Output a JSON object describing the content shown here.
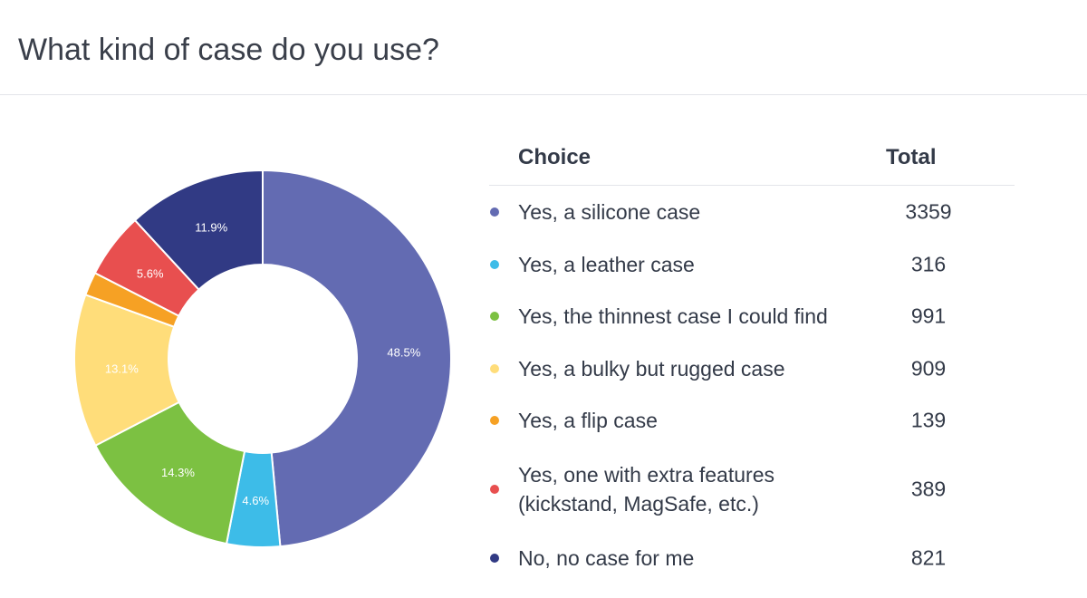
{
  "page": {
    "title": "What kind of case do you use?"
  },
  "table": {
    "header_choice": "Choice",
    "header_total": "Total"
  },
  "chart_data": {
    "type": "pie",
    "variant": "donut",
    "title": "What kind of case do you use?",
    "slices": [
      {
        "label": "Yes, a silicone case",
        "value": 3359,
        "percent_label": "48.5%",
        "color": "#636bb2"
      },
      {
        "label": "Yes, a leather case",
        "value": 316,
        "percent_label": "4.6%",
        "color": "#3dbce8"
      },
      {
        "label": "Yes, the thinnest case I could find",
        "value": 991,
        "percent_label": "14.3%",
        "color": "#7cc142"
      },
      {
        "label": "Yes, a bulky but rugged case",
        "value": 909,
        "percent_label": "13.1%",
        "color": "#ffdd7a"
      },
      {
        "label": "Yes, a flip case",
        "value": 139,
        "percent_label": "",
        "color": "#f6a124"
      },
      {
        "label_lines": [
          "Yes, one with extra features",
          "(kickstand, MagSafe, etc.)"
        ],
        "value": 389,
        "percent_label": "5.6%",
        "color": "#e84f4f"
      },
      {
        "label": "No, no case for me",
        "value": 821,
        "percent_label": "11.9%",
        "color": "#313a84"
      }
    ],
    "legend_position": "right"
  }
}
